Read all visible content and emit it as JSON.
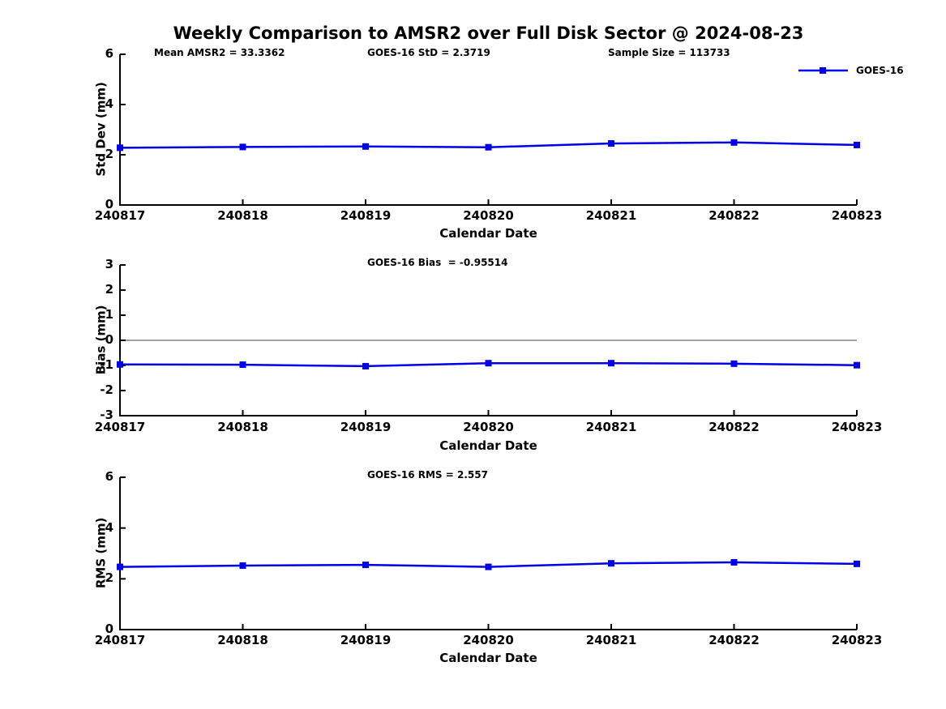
{
  "title": "Weekly Comparison to AMSR2 over Full Disk Sector @ 2024-08-23",
  "legend": {
    "label": "GOES-16"
  },
  "colors": {
    "line": "#0000e6",
    "axis": "#000000",
    "zero_line": "#808080",
    "text": "#000000"
  },
  "chart_data": [
    {
      "type": "line",
      "ylabel": "Std Dev (mm)",
      "xlabel": "Calendar Date",
      "categories": [
        "240817",
        "240818",
        "240819",
        "240820",
        "240821",
        "240822",
        "240823"
      ],
      "ylim": [
        0,
        6
      ],
      "yticks": [
        0,
        2,
        4,
        6
      ],
      "grid": false,
      "zero_line": false,
      "legend_position": "top-right",
      "annotations": [
        "Mean AMSR2 = 33.3362",
        "GOES-16 StD = 2.3719",
        "Sample Size = 113733"
      ],
      "series": [
        {
          "name": "GOES-16",
          "marker": "square",
          "values": [
            2.28,
            2.31,
            2.33,
            2.3,
            2.45,
            2.49,
            2.39
          ]
        }
      ]
    },
    {
      "type": "line",
      "ylabel": "Bias (mm)",
      "xlabel": "Calendar Date",
      "categories": [
        "240817",
        "240818",
        "240819",
        "240820",
        "240821",
        "240822",
        "240823"
      ],
      "ylim": [
        -3,
        3
      ],
      "yticks": [
        3,
        2,
        1,
        0,
        -1,
        -2,
        -3
      ],
      "grid": false,
      "zero_line": true,
      "annotations": [
        "GOES-16 Bias  = -0.95514"
      ],
      "series": [
        {
          "name": "GOES-16",
          "marker": "square",
          "values": [
            -0.96,
            -0.97,
            -1.03,
            -0.91,
            -0.91,
            -0.93,
            -0.99
          ]
        }
      ]
    },
    {
      "type": "line",
      "ylabel": "RMS (mm)",
      "xlabel": "Calendar Date",
      "categories": [
        "240817",
        "240818",
        "240819",
        "240820",
        "240821",
        "240822",
        "240823"
      ],
      "ylim": [
        0,
        6
      ],
      "yticks": [
        0,
        2,
        4,
        6
      ],
      "grid": false,
      "zero_line": false,
      "annotations": [
        "GOES-16 RMS = 2.557"
      ],
      "series": [
        {
          "name": "GOES-16",
          "marker": "square",
          "values": [
            2.47,
            2.52,
            2.55,
            2.47,
            2.61,
            2.65,
            2.59
          ]
        }
      ]
    }
  ]
}
